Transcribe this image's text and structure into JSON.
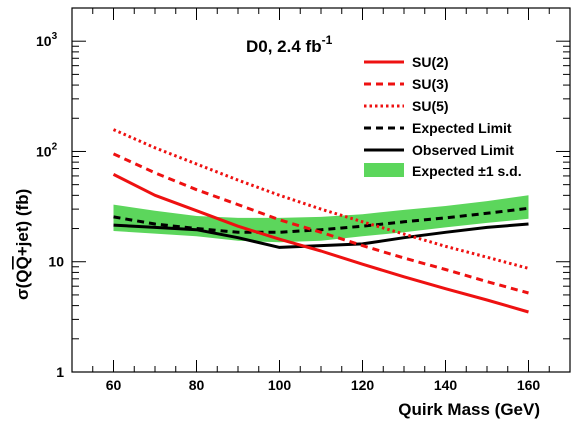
{
  "chart_data": {
    "type": "line",
    "title": "D0, 2.4 fb",
    "title_superscript": "-1",
    "xlabel": "Quirk Mass (GeV)",
    "ylabel_parts": [
      "σ(Q",
      "Q",
      "+jet) (fb)"
    ],
    "xlim": [
      50,
      170
    ],
    "ylim": [
      1,
      2000
    ],
    "yscale": "log",
    "x_ticks": [
      60,
      80,
      100,
      120,
      140,
      160
    ],
    "x_tick_labels": [
      "60",
      "80",
      "100",
      "120",
      "140",
      "160"
    ],
    "y_ticks": [
      {
        "value": 1,
        "base": "1",
        "exp": ""
      },
      {
        "value": 10,
        "base": "10",
        "exp": ""
      },
      {
        "value": 100,
        "base": "10",
        "exp": "2"
      },
      {
        "value": 1000,
        "base": "10",
        "exp": "3"
      }
    ],
    "legend_position": "top-right",
    "series": [
      {
        "name": "SU(2)",
        "style": "solid",
        "color": "#ee1111",
        "x": [
          60,
          70,
          80,
          90,
          100,
          110,
          120,
          130,
          140,
          150,
          160
        ],
        "y": [
          62,
          40,
          29,
          21,
          16,
          12.5,
          9.5,
          7.3,
          5.7,
          4.5,
          3.5
        ]
      },
      {
        "name": "SU(3)",
        "style": "dashed",
        "color": "#ee1111",
        "x": [
          60,
          70,
          80,
          90,
          100,
          110,
          120,
          130,
          140,
          150,
          160
        ],
        "y": [
          95,
          64,
          45,
          33,
          24,
          18.5,
          14,
          10.8,
          8.5,
          6.6,
          5.2
        ]
      },
      {
        "name": "SU(5)",
        "style": "dotted",
        "color": "#ee1111",
        "x": [
          60,
          70,
          80,
          90,
          100,
          110,
          120,
          130,
          140,
          150,
          160
        ],
        "y": [
          158,
          108,
          77,
          55,
          40,
          30,
          23,
          17.8,
          13.8,
          11,
          8.7
        ]
      },
      {
        "name": "Expected Limit",
        "style": "dashed",
        "color": "#000000",
        "x": [
          60,
          70,
          80,
          90,
          100,
          110,
          120,
          130,
          140,
          150,
          160
        ],
        "y": [
          25.5,
          22,
          20,
          18.5,
          18.5,
          19.5,
          21,
          23,
          25,
          27.5,
          30.5
        ]
      },
      {
        "name": "Observed Limit",
        "style": "solid",
        "color": "#000000",
        "x": [
          60,
          70,
          80,
          90,
          100,
          110,
          120,
          130,
          140,
          150,
          160
        ],
        "y": [
          21.5,
          20.5,
          19.5,
          16.5,
          13.5,
          14,
          14.5,
          16.5,
          18.5,
          20.5,
          22
        ]
      }
    ],
    "band": {
      "name": "Expected ±1 s.d.",
      "color": "#5cd65c",
      "x": [
        60,
        70,
        80,
        90,
        100,
        110,
        120,
        130,
        140,
        150,
        160
      ],
      "low": [
        19,
        18,
        17,
        15.5,
        15,
        15.5,
        17,
        18.5,
        20.5,
        22.5,
        24.5
      ],
      "high": [
        33,
        29,
        26,
        25,
        25,
        25.5,
        27,
        29.5,
        32,
        35.5,
        40
      ]
    }
  }
}
